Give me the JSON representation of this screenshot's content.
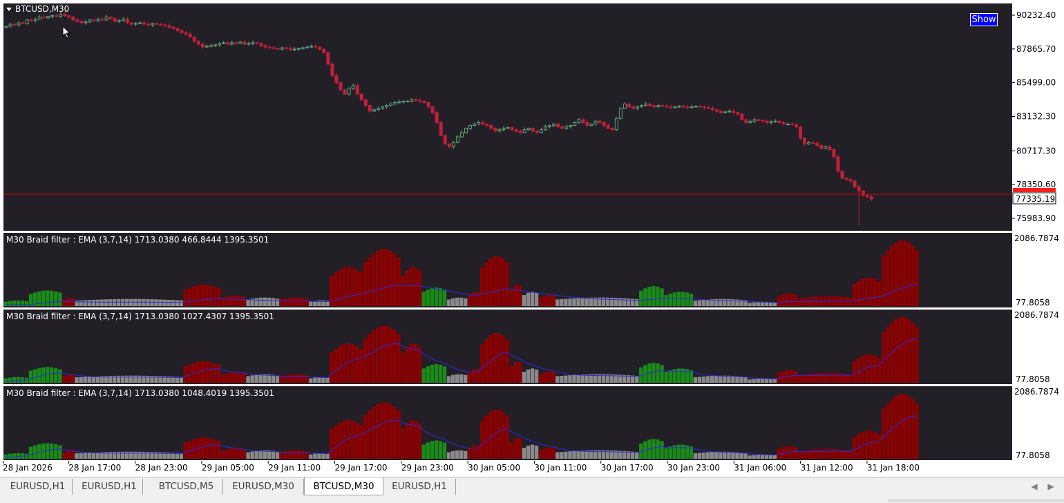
{
  "window": {
    "symbol_label": "BTCUSD,M30",
    "show_button": "Show"
  },
  "price_axis": {
    "ticks": [
      "90232.40",
      "87865.70",
      "85499.00",
      "83132.30",
      "80717.30",
      "78350.60",
      "75983.90"
    ],
    "current_price": "77335.19"
  },
  "indicators": [
    {
      "label": "M30 Braid filter : EMA  (3,7,14) 1713.0380 466.8444 1395.3501",
      "axis_top": "2086.7874",
      "axis_bottom": "77.8058"
    },
    {
      "label": "M30 Braid filter : EMA  (3,7,14) 1713.0380 1027.4307 1395.3501",
      "axis_top": "2086.7874",
      "axis_bottom": "77.8058"
    },
    {
      "label": "M30 Braid filter : EMA  (3,7,14) 1713.0380 1048.4019 1395.3501",
      "axis_top": "2086.7874",
      "axis_bottom": "77.8058"
    }
  ],
  "time_axis": [
    "28 Jan 2026",
    "28 Jan 17:00",
    "28 Jan 23:00",
    "29 Jan 05:00",
    "29 Jan 11:00",
    "29 Jan 17:00",
    "29 Jan 23:00",
    "30 Jan 05:00",
    "30 Jan 11:00",
    "30 Jan 17:00",
    "30 Jan 23:00",
    "31 Jan 06:00",
    "31 Jan 12:00",
    "31 Jan 18:00"
  ],
  "tabs": [
    {
      "label": "EURUSD,H1",
      "active": false
    },
    {
      "label": "EURUSD,H1",
      "active": false
    },
    {
      "label": "BTCUSD,M5",
      "active": false
    },
    {
      "label": "EURUSD,M30",
      "active": false
    },
    {
      "label": "BTCUSD,M30",
      "active": true
    },
    {
      "label": "EURUSD,H1",
      "active": false
    }
  ],
  "tab_nav": {
    "left": "◀",
    "right": "▶"
  },
  "colors": {
    "background": "#231f27",
    "bull_candle": "#5fa37a",
    "bear_candle": "#c0203a",
    "current_price_line": "#cc0000",
    "hist_red": "#8b0000",
    "hist_green": "#1a8a1a",
    "hist_gray": "#8a8a8a",
    "ema_line": "#2a2adf"
  },
  "chart_data": {
    "type": "candlestick",
    "title": "BTCUSD,M30",
    "price_range": [
      75983.9,
      90232.4
    ],
    "current_price": 77335.19,
    "closes": [
      89450,
      89600,
      89550,
      89700,
      89650,
      89900,
      89850,
      89950,
      90100,
      90050,
      90150,
      90200,
      90150,
      90300,
      90200,
      90100,
      89900,
      89800,
      89700,
      89750,
      89900,
      89850,
      89950,
      89900,
      90100,
      90000,
      89800,
      89850,
      89950,
      89700,
      89600,
      89650,
      89700,
      89600,
      89550,
      89650,
      89600,
      89550,
      89500,
      89400,
      89300,
      89150,
      89000,
      88900,
      88700,
      88400,
      88200,
      88000,
      88050,
      88100,
      88150,
      88250,
      88300,
      88200,
      88300,
      88250,
      88350,
      88200,
      88250,
      88300,
      88250,
      88100,
      88000,
      87950,
      87900,
      87850,
      87950,
      87900,
      87800,
      87850,
      87900,
      87950,
      88000,
      88050,
      88000,
      87850,
      87600,
      86800,
      86000,
      85500,
      85000,
      84700,
      85100,
      85300,
      84700,
      84300,
      83900,
      83500,
      83600,
      83700,
      83800,
      83900,
      84000,
      84100,
      84150,
      84200,
      84200,
      84300,
      84250,
      84200,
      84100,
      83800,
      83400,
      82700,
      81800,
      81200,
      81000,
      81300,
      81700,
      82000,
      82300,
      82500,
      82600,
      82700,
      82600,
      82500,
      82300,
      82100,
      82200,
      82300,
      82350,
      82200,
      82100,
      82000,
      82200,
      82300,
      82100,
      82000,
      82200,
      82400,
      82500,
      82600,
      82400,
      82300,
      82400,
      82500,
      82700,
      82900,
      82700,
      82500,
      82600,
      82800,
      82700,
      82500,
      82300,
      82200,
      83000,
      83700,
      84000,
      83800,
      83700,
      83800,
      83900,
      84000,
      83900,
      83800,
      83900,
      83850,
      83800,
      83750,
      83800,
      83850,
      83800,
      83750,
      83800,
      83850,
      83800,
      83750,
      83700,
      83600,
      83500,
      83400,
      83450,
      83500,
      83400,
      83300,
      82900,
      82700,
      82800,
      82900,
      82850,
      82800,
      82700,
      82750,
      82800,
      82700,
      82600,
      82600,
      82550,
      82400,
      81600,
      81200,
      81300,
      81250,
      81100,
      80900,
      81000,
      80800,
      80300,
      79300,
      78800,
      78700,
      78600,
      78200,
      77900,
      77600,
      77500,
      77335
    ]
  }
}
